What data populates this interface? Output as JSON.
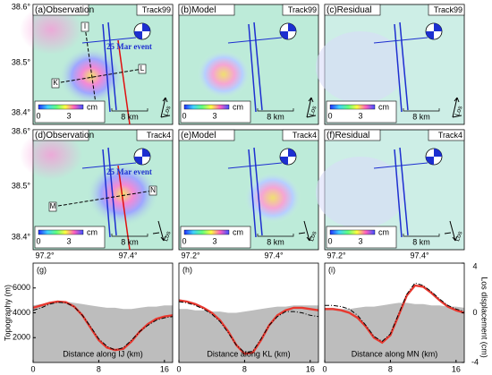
{
  "maps": {
    "lat_labels": [
      "38.6°",
      "38.5°",
      "38.4°"
    ],
    "lon_labels": [
      "97.2°",
      "97.4°"
    ],
    "event": "25 Mar event",
    "panels": [
      {
        "label": "(a)Observation",
        "track": "Track99",
        "unit": "cm",
        "cbar_min": "0",
        "cbar_max": "3",
        "scale": "8 km",
        "los": "Los",
        "points": [
          "I",
          "J",
          "K",
          "L"
        ]
      },
      {
        "label": "(b)Model",
        "track": "Track99",
        "unit": "cm",
        "cbar_min": "0",
        "cbar_max": "3",
        "scale": "8 km",
        "los": "Los"
      },
      {
        "label": "(c)Residual",
        "track": "Track99",
        "unit": "cm",
        "cbar_min": "0",
        "cbar_max": "3",
        "scale": "8 km",
        "los": "Los"
      },
      {
        "label": "(d)Observation",
        "track": "Track4",
        "unit": "cm",
        "cbar_min": "0",
        "cbar_max": "3",
        "scale": "8 km",
        "los": "Los",
        "points": [
          "M",
          "N"
        ]
      },
      {
        "label": "(e)Model",
        "track": "Track4",
        "unit": "cm",
        "cbar_min": "0",
        "cbar_max": "3",
        "scale": "8 km",
        "los": "Los"
      },
      {
        "label": "(f)Residual",
        "track": "Track4",
        "unit": "cm",
        "cbar_min": "0",
        "cbar_max": "3",
        "scale": "8 km",
        "los": "Los"
      }
    ]
  },
  "chart_data": [
    {
      "type": "line",
      "label": "(g)",
      "xlabel": "Distance along IJ (km)",
      "ylabel": "Topography (m)",
      "x": [
        0,
        1,
        2,
        3,
        4,
        5,
        6,
        7,
        8,
        9,
        10,
        11,
        12,
        13,
        14,
        15,
        16,
        17
      ],
      "xlim": [
        0,
        17
      ],
      "xticks": [
        0,
        8,
        16
      ],
      "ylim": [
        0,
        8000
      ],
      "yticks": [
        2000,
        4000,
        6000
      ],
      "y2lim": [
        -4,
        4
      ],
      "series": [
        {
          "color": "#bdbdbd",
          "area": true,
          "values": [
            4600,
            4700,
            4800,
            4900,
            4900,
            4800,
            4700,
            4600,
            4500,
            4400,
            4400,
            4300,
            4300,
            4400,
            4500,
            4500,
            4600,
            4600
          ]
        },
        {
          "color": "#e8382f",
          "axis": "y2",
          "values": [
            0.4,
            0.6,
            0.8,
            0.9,
            0.85,
            0.5,
            -0.2,
            -1.2,
            -2.2,
            -2.8,
            -3.0,
            -2.9,
            -2.3,
            -1.5,
            -0.9,
            -0.5,
            -0.3,
            -0.2
          ]
        },
        {
          "color": "#000000",
          "axis": "y2",
          "dashed": true,
          "values": [
            0.2,
            0.4,
            0.7,
            0.85,
            0.8,
            0.5,
            -0.2,
            -1.1,
            -2.1,
            -2.7,
            -3.0,
            -2.8,
            -2.2,
            -1.5,
            -1.0,
            -0.6,
            -0.4,
            -0.3
          ]
        }
      ]
    },
    {
      "type": "line",
      "label": "(h)",
      "xlabel": "Distance along KL (km)",
      "x": [
        0,
        1,
        2,
        3,
        4,
        5,
        6,
        7,
        8,
        9,
        10,
        11,
        12,
        13,
        14,
        15,
        16,
        17
      ],
      "xlim": [
        0,
        17
      ],
      "xticks": [
        0,
        8,
        16
      ],
      "ylim": [
        0,
        8000
      ],
      "y2lim": [
        -4,
        4
      ],
      "series": [
        {
          "color": "#bdbdbd",
          "area": true,
          "values": [
            4300,
            4300,
            4200,
            4200,
            4100,
            4100,
            4000,
            4000,
            4100,
            4200,
            4300,
            4400,
            4500,
            4500,
            4600,
            4600,
            4600,
            4600
          ]
        },
        {
          "color": "#e8382f",
          "axis": "y2",
          "values": [
            1.0,
            0.9,
            0.7,
            0.4,
            0,
            -0.6,
            -1.5,
            -2.6,
            -3.3,
            -3.2,
            -2.2,
            -1.0,
            -0.2,
            0.2,
            0.4,
            0.4,
            0.3,
            0.2
          ]
        },
        {
          "color": "#000000",
          "axis": "y2",
          "dashed": true,
          "values": [
            0.9,
            0.8,
            0.6,
            0.3,
            -0.1,
            -0.7,
            -1.6,
            -2.6,
            -3.2,
            -3.1,
            -2.1,
            -1.0,
            -0.3,
            0.1,
            0.1,
            0,
            -0.2,
            -0.3
          ]
        }
      ]
    },
    {
      "type": "line",
      "label": "(i)",
      "xlabel": "Distance along MN (km)",
      "y2label": "Los displacement (cm)",
      "x": [
        0,
        1,
        2,
        3,
        4,
        5,
        6,
        7,
        8,
        9,
        10,
        11,
        12,
        13,
        14,
        15,
        16,
        17
      ],
      "xlim": [
        0,
        17
      ],
      "xticks": [
        0,
        8,
        16
      ],
      "ylim": [
        0,
        8000
      ],
      "y2lim": [
        -4,
        4
      ],
      "y2ticks": [
        -4,
        0,
        4
      ],
      "series": [
        {
          "color": "#bdbdbd",
          "area": true,
          "values": [
            4400,
            4400,
            4300,
            4300,
            4400,
            4500,
            4500,
            4600,
            4700,
            4800,
            4800,
            4700,
            4700,
            4600,
            4600,
            4500,
            4500,
            4400
          ]
        },
        {
          "color": "#e8382f",
          "axis": "y2",
          "values": [
            0.3,
            0.3,
            0.2,
            0,
            -0.4,
            -1.1,
            -2.0,
            -2.4,
            -1.8,
            -0.2,
            1.4,
            2.2,
            2.1,
            1.6,
            1.0,
            0.5,
            0.2,
            0
          ]
        },
        {
          "color": "#000000",
          "axis": "y2",
          "dashed": true,
          "values": [
            0.6,
            0.6,
            0.5,
            0.3,
            -0.2,
            -1.0,
            -1.9,
            -2.3,
            -1.7,
            -0.1,
            1.5,
            2.4,
            2.2,
            1.7,
            1.1,
            0.6,
            0.3,
            0.1
          ]
        }
      ]
    }
  ]
}
